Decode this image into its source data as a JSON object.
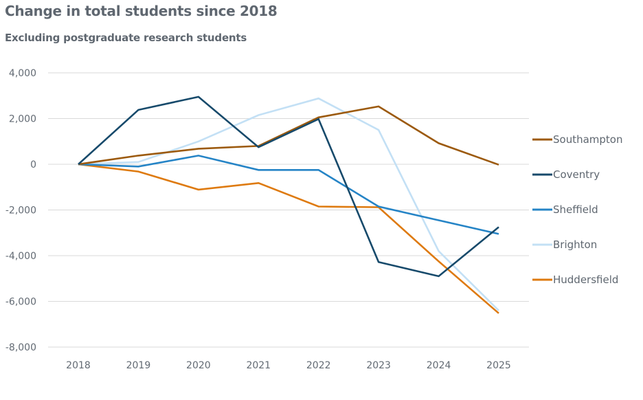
{
  "chart_data": {
    "type": "line",
    "title": "Change in total students since 2018",
    "subtitle": "Excluding postgraduate research students",
    "xlabel": "",
    "ylabel": "",
    "x": [
      "2018",
      "2019",
      "2020",
      "2021",
      "2022",
      "2023",
      "2024",
      "2025"
    ],
    "ylim": [
      -8000,
      4000
    ],
    "yticks": [
      4000,
      2000,
      0,
      -2000,
      -4000,
      -6000,
      -8000
    ],
    "ytick_labels": [
      "4,000",
      "2,000",
      "0",
      "-2,000",
      "-4,000",
      "-6,000",
      "-8,000"
    ],
    "grid": true,
    "legend_position": "right",
    "series": [
      {
        "name": "Southampton",
        "color": "#9c5a0e",
        "values": [
          0,
          380,
          680,
          800,
          2050,
          2530,
          920,
          -20
        ]
      },
      {
        "name": "Coventry",
        "color": "#174a6b",
        "values": [
          0,
          2380,
          2950,
          750,
          1980,
          -4280,
          -4900,
          -2750
        ]
      },
      {
        "name": "Sheffield",
        "color": "#2584c6",
        "values": [
          0,
          -100,
          380,
          -250,
          -250,
          -1850,
          -2450,
          -3050
        ]
      },
      {
        "name": "Brighton",
        "color": "#c3e0f5",
        "values": [
          0,
          100,
          1000,
          2150,
          2880,
          1500,
          -3800,
          -6400
        ]
      },
      {
        "name": "Huddersfield",
        "color": "#de7a0f",
        "values": [
          0,
          -320,
          -1110,
          -820,
          -1850,
          -1880,
          -4250,
          -6520
        ]
      }
    ]
  }
}
